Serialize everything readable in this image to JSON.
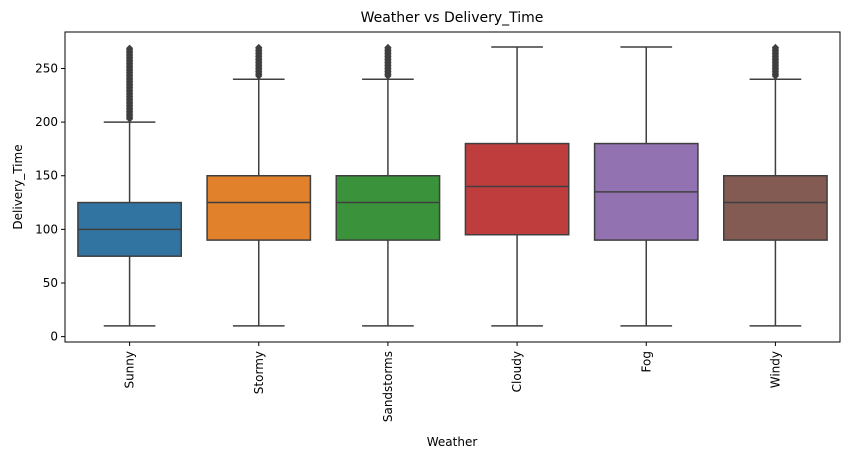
{
  "chart_data": {
    "type": "box",
    "title": "Weather vs Delivery_Time",
    "xlabel": "Weather",
    "ylabel": "Delivery_Time",
    "ylim": [
      -5,
      284
    ],
    "yticks": [
      0,
      50,
      100,
      150,
      200,
      250
    ],
    "grid": false,
    "legend": "none",
    "categories": [
      "Sunny",
      "Stormy",
      "Sandstorms",
      "Cloudy",
      "Fog",
      "Windy"
    ],
    "boxes": [
      {
        "category": "Sunny",
        "color": "#3274a1",
        "whisker_low": 10,
        "q1": 75,
        "median": 100,
        "q3": 125,
        "whisker_high": 200,
        "outliers_from": 203,
        "outliers_to": 270
      },
      {
        "category": "Stormy",
        "color": "#e1812c",
        "whisker_low": 10,
        "q1": 90,
        "median": 125,
        "q3": 150,
        "whisker_high": 240,
        "outliers_from": 243,
        "outliers_to": 270
      },
      {
        "category": "Sandstorms",
        "color": "#3a923a",
        "whisker_low": 10,
        "q1": 90,
        "median": 125,
        "q3": 150,
        "whisker_high": 240,
        "outliers_from": 243,
        "outliers_to": 270
      },
      {
        "category": "Cloudy",
        "color": "#c03d3e",
        "whisker_low": 10,
        "q1": 95,
        "median": 140,
        "q3": 180,
        "whisker_high": 270,
        "outliers_from": null,
        "outliers_to": null
      },
      {
        "category": "Fog",
        "color": "#9372b2",
        "whisker_low": 10,
        "q1": 90,
        "median": 135,
        "q3": 180,
        "whisker_high": 270,
        "outliers_from": null,
        "outliers_to": null
      },
      {
        "category": "Windy",
        "color": "#845b53",
        "whisker_low": 10,
        "q1": 90,
        "median": 125,
        "q3": 150,
        "whisker_high": 240,
        "outliers_from": 243,
        "outliers_to": 270
      }
    ]
  }
}
